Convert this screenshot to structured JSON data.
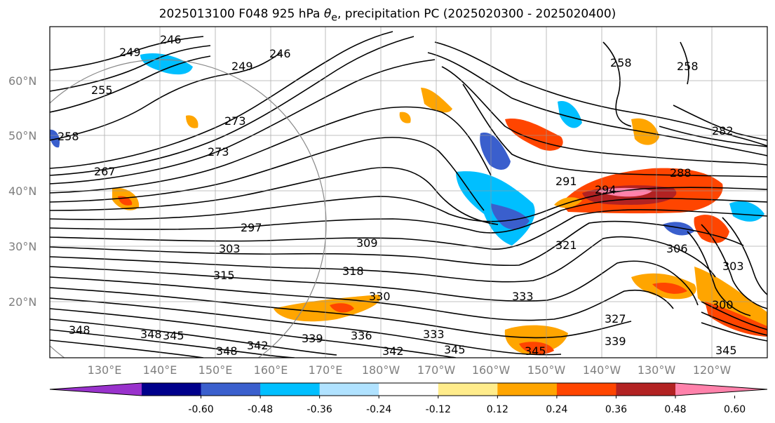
{
  "title_prefix": "2025013100 F048 925 hPa ",
  "title_theta": "θ",
  "title_sub": "e",
  "title_suffix": ", precipitation PC (2025020300 - 2025020400)",
  "lat_labels": [
    "60°N",
    "50°N",
    "40°N",
    "30°N",
    "20°N"
  ],
  "lon_labels": [
    "130°E",
    "140°E",
    "150°E",
    "160°E",
    "170°E",
    "180°W",
    "170°W",
    "160°W",
    "150°W",
    "140°W",
    "130°W",
    "120°W"
  ],
  "contour_labels": [
    "246",
    "249",
    "255",
    "258",
    "267",
    "273",
    "297",
    "303",
    "309",
    "315",
    "318",
    "321",
    "327",
    "330",
    "333",
    "336",
    "339",
    "342",
    "345",
    "348",
    "291",
    "294",
    "288",
    "282",
    "300",
    "303",
    "306"
  ],
  "colorbar": {
    "colors": [
      "#9932cc",
      "#00008b",
      "#3a5fcd",
      "#00bfff",
      "#b0e2ff",
      "#ffffff",
      "#ffec8b",
      "#ffa500",
      "#ff4500",
      "#b22222",
      "#ff82ab"
    ],
    "tick_labels": [
      "-0.60",
      "-0.48",
      "-0.36",
      "-0.24",
      "-0.12",
      "0.12",
      "0.24",
      "0.36",
      "0.48",
      "0.60"
    ]
  }
}
